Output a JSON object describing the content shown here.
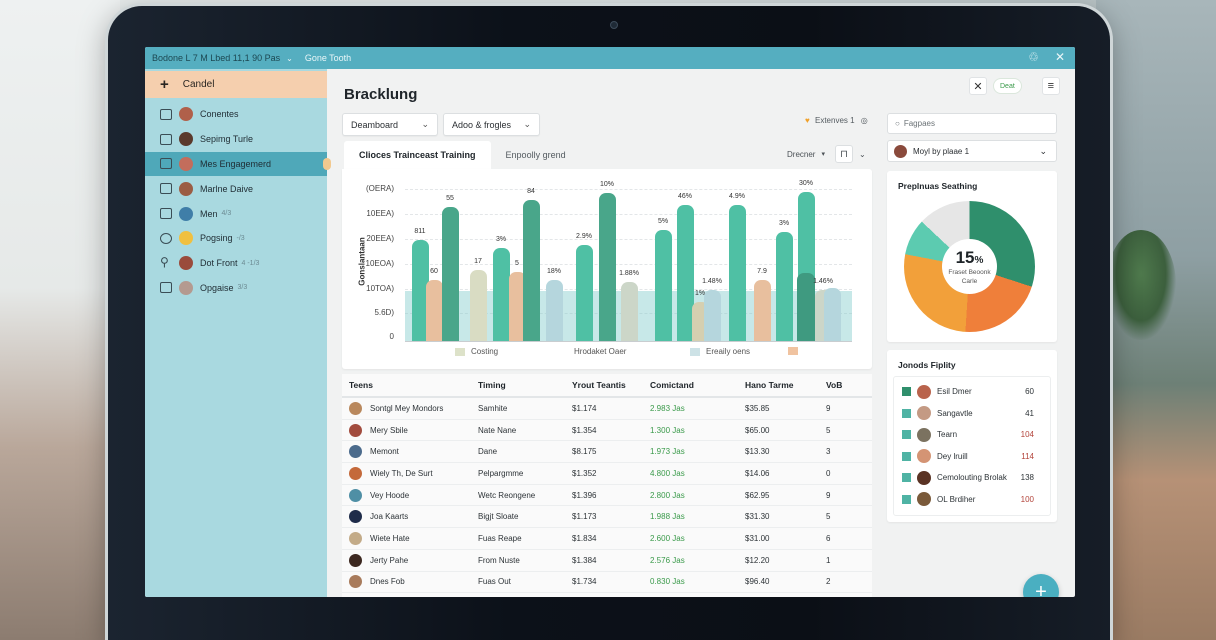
{
  "window": {
    "title": "Bodone L 7 M Lbed 11,1 90 Pas",
    "title_secondary": "Gone Tooth",
    "title_icons": [
      "bell-icon",
      "close-icon"
    ]
  },
  "sidebar": {
    "new_button": {
      "icon": "plus-icon",
      "label": "Candel"
    },
    "items": [
      {
        "label": "Conentes",
        "icon": "columns-icon",
        "avatar_color": "#b0604a",
        "count": "",
        "active": false
      },
      {
        "label": "Sepimg Turle",
        "icon": "clipboard-icon",
        "avatar_color": "#5a3a2c",
        "count": "",
        "active": false
      },
      {
        "label": "Mes Engagemerd",
        "icon": "document-icon",
        "avatar_color": "#c36d5c",
        "count": "",
        "active": true
      },
      {
        "label": "Marlne Daive",
        "icon": "calendar-icon",
        "avatar_color": "#9b5d44",
        "count": "",
        "active": false
      },
      {
        "label": "Men",
        "icon": "inbox-icon",
        "avatar_color": "#3f7ea8",
        "count": "4/3",
        "active": false
      },
      {
        "label": "Pogsing",
        "icon": "target-icon",
        "avatar_color": "#f0c040",
        "count": "-/3",
        "active": false
      },
      {
        "label": "Dot Front",
        "icon": "pin-icon",
        "avatar_color": "#9a4b3c",
        "count": "4 -1/3",
        "active": false
      },
      {
        "label": "Opgaise",
        "icon": "grid-icon",
        "avatar_color": "#b49a90",
        "count": "3/3",
        "active": false
      }
    ]
  },
  "main": {
    "page_title": "Bracklung",
    "filters": [
      {
        "label": "Deamboard",
        "icon": "chevron-down-icon"
      },
      {
        "label": "Adoo & frogles",
        "icon": "chevron-down-icon"
      }
    ],
    "badge": {
      "label": "Extenves 1",
      "icon": "heart-icon"
    },
    "tabs": [
      {
        "label": "Clioces Trainceast Training",
        "active": true
      },
      {
        "label": "Enpoolly grend",
        "active": false
      }
    ],
    "tab_tools": {
      "dropdown_label": "Drecner",
      "lock_icon": "lock-icon"
    }
  },
  "chart_data": {
    "type": "bar",
    "title": "",
    "ylabel": "Gonslantaan",
    "xlabel": "",
    "y_ticks": [
      "(OERA)",
      "10EEA)",
      "20EEA)",
      "10EOA)",
      "10TOA)",
      "5.6D)",
      "0"
    ],
    "grid": true,
    "legend_position": "bottom",
    "legend": [
      {
        "label": "Costing",
        "color": "#dde2c9"
      },
      {
        "label": "Hrodaket Oaer",
        "color": ""
      },
      {
        "label": "Ereaily oens",
        "color": "#cde2e6"
      },
      {
        "label": "",
        "color": "#f0c3a0"
      }
    ],
    "bars": [
      {
        "x": 78,
        "height": 101,
        "color": "#4fc0a4",
        "label": "811"
      },
      {
        "x": 92,
        "height": 61,
        "color": "#e8bf9e",
        "label": "60"
      },
      {
        "x": 108,
        "height": 134,
        "color": "#49a68a",
        "label": "55"
      },
      {
        "x": 136,
        "height": 71,
        "color": "#d9dcc3",
        "label": "17"
      },
      {
        "x": 159,
        "height": 93,
        "color": "#4fc0a4",
        "label": "3%"
      },
      {
        "x": 175,
        "height": 69,
        "color": "#e8bf9e",
        "label": "5"
      },
      {
        "x": 189,
        "height": 141,
        "color": "#49a68a",
        "label": "84"
      },
      {
        "x": 212,
        "height": 61,
        "color": "#b5d6dd",
        "label": "18%"
      },
      {
        "x": 242,
        "height": 96,
        "color": "#4fc0a4",
        "label": "2.9%"
      },
      {
        "x": 265,
        "height": 148,
        "color": "#49a68a",
        "label": "10%"
      },
      {
        "x": 287,
        "height": 59,
        "color": "#ccd6c8",
        "label": "1.88%"
      },
      {
        "x": 321,
        "height": 111,
        "color": "#4fc0a4",
        "label": "5%"
      },
      {
        "x": 343,
        "height": 136,
        "color": "#4fc0a4",
        "label": "46%"
      },
      {
        "x": 358,
        "height": 39,
        "color": "#d5cfb0",
        "label": "1%"
      },
      {
        "x": 370,
        "height": 51,
        "color": "#b5d6dd",
        "label": "1.48%"
      },
      {
        "x": 395,
        "height": 136,
        "color": "#4fc0a4",
        "label": "4.9%"
      },
      {
        "x": 420,
        "height": 61,
        "color": "#e8bf9e",
        "label": "7.9"
      },
      {
        "x": 442,
        "height": 109,
        "color": "#4fc0a4",
        "label": "3%"
      },
      {
        "x": 464,
        "height": 149,
        "color": "#4fc0a4",
        "label": "30%"
      },
      {
        "x": 464,
        "height": 68,
        "color": "#3f9a80",
        "label": ""
      },
      {
        "x": 481,
        "height": 51,
        "color": "#ccd6c8",
        "label": "1.46%"
      },
      {
        "x": 490,
        "height": 53,
        "color": "#b5d6dd",
        "label": ""
      }
    ],
    "band": {
      "from": 0,
      "to": 50,
      "color": "rgba(130,205,205,0.45)"
    }
  },
  "table": {
    "columns": [
      "Teens",
      "Timing",
      "Yrout Teantis",
      "Comictand",
      "Hano Tarme",
      "VoB"
    ],
    "rows": [
      {
        "name": "Sontgl Mey Mondors",
        "avatar_color": "#b9885d",
        "timing": "Samhite",
        "amount": "$1.174",
        "contacted": "2.983 Jas",
        "rate": "$35.85",
        "vob": "9"
      },
      {
        "name": "Mery Sbile",
        "avatar_color": "#a24c3e",
        "timing": "Nate Nane",
        "amount": "$1.354",
        "contacted": "1.300 Jas",
        "rate": "$65.00",
        "vob": "5"
      },
      {
        "name": "Memont",
        "avatar_color": "#4c6b8c",
        "timing": "Dane",
        "amount": "$8.175",
        "contacted": "1.973 Jas",
        "rate": "$13.30",
        "vob": "3"
      },
      {
        "name": "Wiely Th, De Surt",
        "avatar_color": "#c4693a",
        "timing": "Pelpargmme",
        "amount": "$1.352",
        "contacted": "4.800 Jas",
        "rate": "$14.06",
        "vob": "0"
      },
      {
        "name": "Vey Hoode",
        "avatar_color": "#4f8fa5",
        "timing": "Wetc Reongene",
        "amount": "$1.396",
        "contacted": "2.800 Jas",
        "rate": "$62.95",
        "vob": "9"
      },
      {
        "name": "Joa Kaarts",
        "avatar_color": "#1f2c4a",
        "timing": "Bigjt Sloate",
        "amount": "$1.173",
        "contacted": "1.988 Jas",
        "rate": "$31.30",
        "vob": "5"
      },
      {
        "name": "Wiete Hate",
        "avatar_color": "#c3ab88",
        "timing": "Fuas Reape",
        "amount": "$1.834",
        "contacted": "2.600 Jas",
        "rate": "$31.00",
        "vob": "6"
      },
      {
        "name": "Jerty Pahe",
        "avatar_color": "#3c2820",
        "timing": "From Nuste",
        "amount": "$1.384",
        "contacted": "2.576 Jas",
        "rate": "$12.20",
        "vob": "1"
      },
      {
        "name": "Dnes Fob",
        "avatar_color": "#a87b5c",
        "timing": "Fuas Out",
        "amount": "$1.734",
        "contacted": "0.830 Jas",
        "rate": "$96.40",
        "vob": "2"
      }
    ]
  },
  "right_panel": {
    "top_icons": {
      "close": "close-icon",
      "pill_label": "Deat",
      "menu": "menu-icon"
    },
    "search": {
      "placeholder": "Fagpaes",
      "icon": "search-icon"
    },
    "user_select": {
      "label": "Moyl by plaae 1",
      "avatar_color": "#8a4a3c"
    },
    "donut_card": {
      "title": "Preplnuas Seathing",
      "value": "15",
      "unit": "%",
      "sub1": "Fraset Beoonk",
      "sub2": "Carle",
      "segments": [
        {
          "color": "#2f8f6c",
          "pct": 30
        },
        {
          "color": "#ef7f3a",
          "pct": 21
        },
        {
          "color": "#f2a03a",
          "pct": 27
        },
        {
          "color": "#5ccbb0",
          "pct": 9
        },
        {
          "color": "#e6e6e6",
          "pct": 13
        }
      ]
    },
    "list_card": {
      "title": "Jonods Fiplity",
      "items": [
        {
          "name": "Esil Dmer",
          "value": "60",
          "square_color": "#2f8f6c",
          "avatar_color": "#b9634c",
          "red": false
        },
        {
          "name": "Sangavtle",
          "value": "41",
          "square_color": "#4fb3a4",
          "avatar_color": "#c49a84",
          "red": false
        },
        {
          "name": "Tearn",
          "value": "104",
          "square_color": "#4fb3a4",
          "avatar_color": "#7b7260",
          "red": true
        },
        {
          "name": "Dey lruill",
          "value": "114",
          "square_color": "#4fb3a4",
          "avatar_color": "#d49474",
          "red": true
        },
        {
          "name": "Cemolouting Brolak",
          "value": "138",
          "square_color": "#4fb3a4",
          "avatar_color": "#5a3324",
          "red": false
        },
        {
          "name": "OL Brdiher",
          "value": "100",
          "square_color": "#4fb3a4",
          "avatar_color": "#7a5a3a",
          "red": true
        }
      ]
    },
    "fab": {
      "label": "+",
      "icon": "plus-icon"
    }
  },
  "colors": {
    "accent": "#55aec0",
    "sidebar_bg": "#a9d9e0",
    "sidebar_active": "#4fa8b9",
    "new_button_bg": "#f5cfae",
    "positive": "#3a9a4a",
    "negative": "#b3443b"
  }
}
